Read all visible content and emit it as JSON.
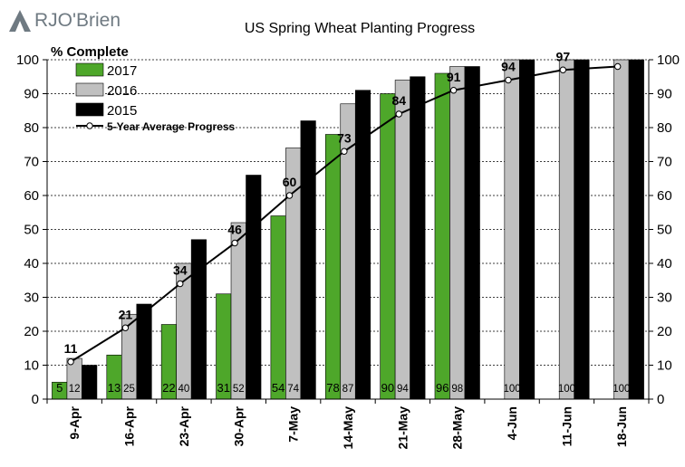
{
  "logo": {
    "text": "RJO'Brien"
  },
  "chart_data": {
    "type": "bar",
    "title": "US Spring Wheat Planting Progress",
    "ylabel": "% Complete",
    "ylim": [
      0,
      100
    ],
    "yticks": [
      0,
      10,
      20,
      30,
      40,
      50,
      60,
      70,
      80,
      90,
      100
    ],
    "grid": true,
    "legend_position": "top-left",
    "categories": [
      "9-Apr",
      "16-Apr",
      "23-Apr",
      "30-Apr",
      "7-May",
      "14-May",
      "21-May",
      "28-May",
      "4-Jun",
      "11-Jun",
      "18-Jun"
    ],
    "series": [
      {
        "name": "2017",
        "color": "#4ea72a",
        "values": [
          5,
          13,
          22,
          31,
          54,
          78,
          90,
          96,
          null,
          null,
          null
        ],
        "labels": [
          "5",
          "13",
          "22",
          "31",
          "54",
          "78",
          "90",
          "96",
          "",
          "",
          ""
        ]
      },
      {
        "name": "2016",
        "color": "#c0c0c0",
        "values": [
          12,
          25,
          40,
          52,
          74,
          87,
          94,
          98,
          100,
          100,
          100
        ],
        "labels": [
          "12",
          "25",
          "40",
          "52",
          "74",
          "87",
          "94",
          "98",
          "100",
          "100",
          "100"
        ]
      },
      {
        "name": "2015",
        "color": "#000000",
        "values": [
          10,
          28,
          47,
          66,
          82,
          91,
          95,
          98,
          100,
          100,
          100
        ],
        "labels": [
          "",
          "",
          "",
          "",
          "",
          "",
          "",
          "",
          "",
          "",
          ""
        ]
      }
    ],
    "line_series": {
      "name": "5-Year Average Progress",
      "values": [
        11,
        21,
        34,
        46,
        60,
        73,
        84,
        91,
        94,
        97,
        98
      ],
      "labels": [
        "11",
        "21",
        "34",
        "46",
        "60",
        "73",
        "84",
        "91",
        "94",
        "97",
        ""
      ]
    }
  }
}
